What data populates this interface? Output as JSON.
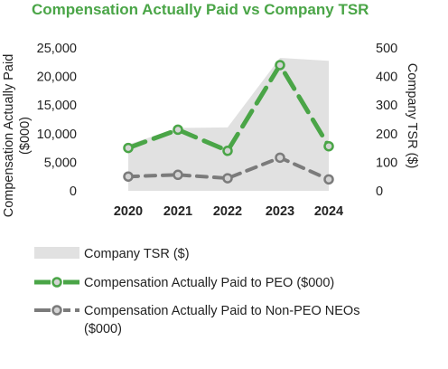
{
  "chart_data": {
    "type": "line",
    "title": "Compensation Actually Paid vs Company TSR",
    "categories": [
      "2020",
      "2021",
      "2022",
      "2023",
      "2024"
    ],
    "ylabel_left": "Compensation Actually Paid ($000)",
    "ylabel_right": "Company TSR ($)",
    "ylim_left": [
      0,
      25000
    ],
    "ylim_right": [
      0,
      500
    ],
    "yticks_left": [
      "0",
      "5,000",
      "10,000",
      "15,000",
      "20,000",
      "25,000"
    ],
    "yticks_right": [
      "0",
      "100",
      "200",
      "300",
      "400",
      "500"
    ],
    "grid": false,
    "legend_position": "bottom",
    "series": [
      {
        "name": "Company TSR ($)",
        "kind": "area",
        "axis": "right",
        "values": [
          162,
          220,
          222,
          465,
          455
        ],
        "color": "#e1e1e1"
      },
      {
        "name": "Compensation Actually Paid to PEO ($000)",
        "kind": "line",
        "style": "dashed",
        "axis": "left",
        "values": [
          7500,
          10700,
          7000,
          22000,
          7800
        ],
        "color": "#4aa547"
      },
      {
        "name": "Compensation Actually Paid to Non-PEO NEOs ($000)",
        "kind": "line",
        "style": "dashed",
        "axis": "left",
        "values": [
          2500,
          2800,
          2200,
          5800,
          2000
        ],
        "color": "#7b7b7b"
      }
    ]
  },
  "colors": {
    "title": "#4aa547",
    "area": "#e1e1e1",
    "peo": "#4aa547",
    "neo": "#7b7b7b",
    "marker_fill": "#d4d4d4"
  }
}
